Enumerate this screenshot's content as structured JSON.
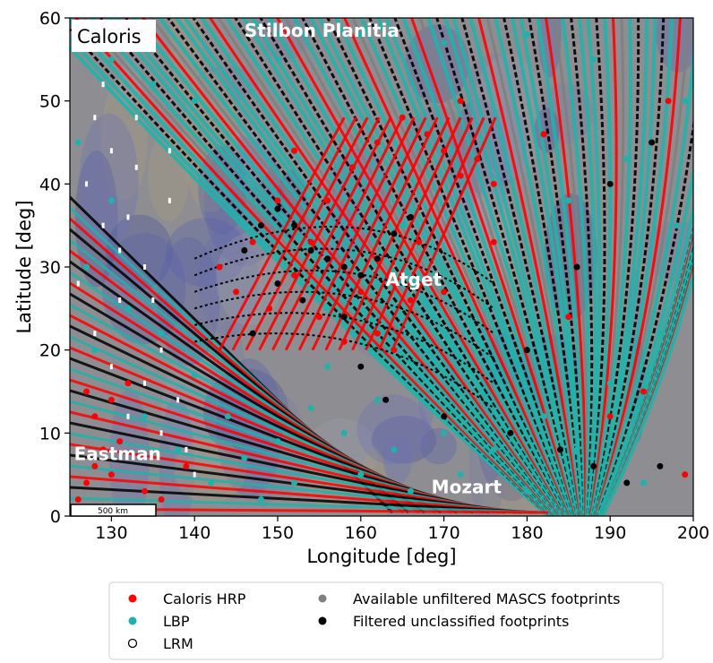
{
  "chart_data": {
    "type": "scatter",
    "region_tag": "Caloris",
    "xlabel": "Longitude [deg]",
    "ylabel": "Latitude [deg]",
    "xlim": [
      125,
      200
    ],
    "ylim": [
      0,
      60
    ],
    "x_ticks": [
      130,
      140,
      150,
      160,
      170,
      180,
      190,
      200
    ],
    "y_ticks": [
      0,
      10,
      20,
      30,
      40,
      50,
      60
    ],
    "scale_bar": "500 km",
    "annotations": [
      {
        "text": "Stilbon Planitia",
        "x": 146,
        "y": 58.5
      },
      {
        "text": "Atget",
        "x": 163,
        "y": 28.5
      },
      {
        "text": "Eastman",
        "x": 125.5,
        "y": 7.5
      },
      {
        "text": "Mozart",
        "x": 168.5,
        "y": 3.5
      }
    ],
    "legend": {
      "position": "bottom-center",
      "entries": [
        {
          "label": "Caloris HRP",
          "color": "#ff0000",
          "marker": "filled-circle"
        },
        {
          "label": "Available unfiltered MASCS footprints",
          "color": "#808080",
          "marker": "filled-circle"
        },
        {
          "label": "LBP",
          "color": "#20b2aa",
          "marker": "filled-circle"
        },
        {
          "label": "Filtered unclassified footprints",
          "color": "#000000",
          "marker": "filled-circle"
        },
        {
          "label": "LRM",
          "color": "#ffffff",
          "marker": "open-circle"
        }
      ]
    },
    "series": [
      {
        "name": "Caloris HRP",
        "color": "#ff0000",
        "points": [
          [
            126,
            2
          ],
          [
            127,
            4
          ],
          [
            128,
            6
          ],
          [
            129,
            8
          ],
          [
            130,
            5
          ],
          [
            131,
            9
          ],
          [
            128,
            12
          ],
          [
            130,
            14
          ],
          [
            132,
            16
          ],
          [
            127,
            15
          ],
          [
            134,
            3
          ],
          [
            136,
            2
          ],
          [
            139,
            6
          ],
          [
            143,
            30
          ],
          [
            145,
            27
          ],
          [
            147,
            33
          ],
          [
            149,
            25
          ],
          [
            152,
            29
          ],
          [
            155,
            24
          ],
          [
            158,
            21
          ],
          [
            160,
            27
          ],
          [
            162,
            22
          ],
          [
            164,
            20
          ],
          [
            166,
            26
          ],
          [
            167,
            33
          ],
          [
            156,
            38
          ],
          [
            159,
            42
          ],
          [
            162,
            45
          ],
          [
            165,
            48
          ],
          [
            168,
            46
          ],
          [
            170,
            44
          ],
          [
            172,
            41
          ],
          [
            174,
            43
          ],
          [
            176,
            40
          ],
          [
            172,
            50
          ],
          [
            152,
            44
          ],
          [
            150,
            38
          ],
          [
            154,
            33
          ],
          [
            170,
            27
          ],
          [
            176,
            33
          ],
          [
            182,
            46
          ],
          [
            185,
            24
          ],
          [
            190,
            12
          ],
          [
            194,
            15
          ],
          [
            197,
            50
          ],
          [
            199,
            5
          ]
        ]
      },
      {
        "name": "LBP",
        "color": "#20b2aa",
        "points": [
          [
            126,
            45
          ],
          [
            127,
            30
          ],
          [
            128,
            20
          ],
          [
            130,
            38
          ],
          [
            132,
            25
          ],
          [
            134,
            12
          ],
          [
            136,
            22
          ],
          [
            138,
            8
          ],
          [
            140,
            17
          ],
          [
            142,
            4
          ],
          [
            144,
            12
          ],
          [
            146,
            7
          ],
          [
            148,
            2
          ],
          [
            150,
            9
          ],
          [
            152,
            4
          ],
          [
            154,
            13
          ],
          [
            156,
            18
          ],
          [
            158,
            10
          ],
          [
            160,
            5
          ],
          [
            162,
            14
          ],
          [
            164,
            8
          ],
          [
            166,
            3
          ],
          [
            170,
            10
          ],
          [
            172,
            5
          ],
          [
            176,
            8
          ],
          [
            180,
            3
          ],
          [
            182,
            12
          ],
          [
            186,
            8
          ],
          [
            190,
            16
          ],
          [
            194,
            4
          ],
          [
            196,
            22
          ],
          [
            198,
            35
          ],
          [
            199,
            50
          ],
          [
            188,
            55
          ],
          [
            180,
            58
          ],
          [
            170,
            57
          ],
          [
            160,
            58
          ],
          [
            150,
            55
          ],
          [
            140,
            50
          ],
          [
            135,
            52
          ],
          [
            130,
            55
          ],
          [
            165,
            35
          ],
          [
            175,
            25
          ],
          [
            185,
            38
          ],
          [
            192,
            43
          ]
        ]
      },
      {
        "name": "LRM",
        "color": "#ffffff",
        "points": [
          [
            126,
            28
          ],
          [
            127,
            40
          ],
          [
            128,
            48
          ],
          [
            129,
            35
          ],
          [
            130,
            44
          ],
          [
            131,
            32
          ],
          [
            132,
            36
          ],
          [
            133,
            42
          ],
          [
            134,
            30
          ],
          [
            135,
            26
          ],
          [
            136,
            20
          ],
          [
            137,
            38
          ],
          [
            138,
            14
          ],
          [
            128,
            22
          ],
          [
            130,
            18
          ],
          [
            132,
            12
          ],
          [
            134,
            16
          ],
          [
            136,
            10
          ],
          [
            139,
            8
          ],
          [
            140,
            5
          ],
          [
            131,
            26
          ],
          [
            133,
            48
          ],
          [
            129,
            52
          ],
          [
            137,
            44
          ]
        ]
      },
      {
        "name": "Filtered unclassified footprints",
        "color": "#000000",
        "points": [
          [
            146,
            32
          ],
          [
            148,
            35
          ],
          [
            150,
            37
          ],
          [
            152,
            35
          ],
          [
            154,
            32
          ],
          [
            156,
            31
          ],
          [
            158,
            30
          ],
          [
            160,
            29
          ],
          [
            162,
            31
          ],
          [
            164,
            34
          ],
          [
            166,
            36
          ],
          [
            150,
            28
          ],
          [
            153,
            26
          ],
          [
            147,
            22
          ],
          [
            158,
            24
          ],
          [
            160,
            18
          ],
          [
            163,
            14
          ],
          [
            170,
            12
          ],
          [
            178,
            10
          ],
          [
            184,
            8
          ],
          [
            188,
            6
          ],
          [
            192,
            4
          ],
          [
            196,
            6
          ],
          [
            180,
            20
          ],
          [
            186,
            30
          ],
          [
            190,
            40
          ],
          [
            195,
            45
          ]
        ]
      }
    ]
  }
}
